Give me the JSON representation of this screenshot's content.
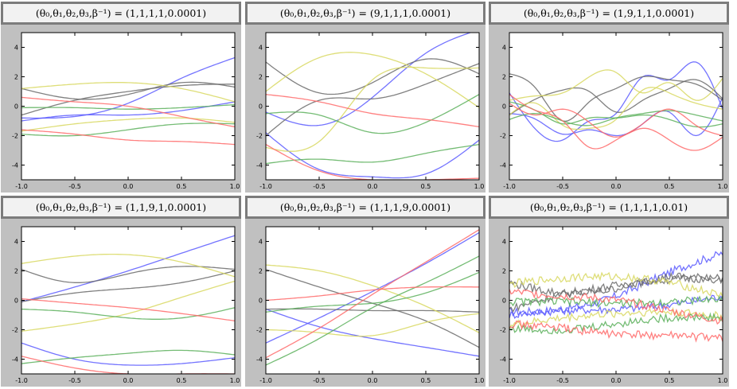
{
  "chart_data": [
    {
      "type": "line",
      "title": "(θ₀,θ₁,θ₂,θ₃,β⁻¹) = (1,1,1,1,0.0001)",
      "xlim": [
        -1.0,
        1.0
      ],
      "ylim": [
        -5.0,
        5.0
      ],
      "xticks": [
        "-1.0",
        "-0.5",
        "0.0",
        "0.5",
        "1.0"
      ],
      "yticks": [
        "-4",
        "-2",
        "0",
        "2",
        "4"
      ],
      "grid": false,
      "legend": "none",
      "x": [
        -1.0,
        -0.5,
        0.0,
        0.5,
        1.0
      ],
      "series": [
        {
          "color": "#5a5aff",
          "values": [
            -0.8,
            -0.7,
            0.2,
            1.9,
            3.3
          ]
        },
        {
          "color": "#5a5aff",
          "values": [
            -1.0,
            -0.6,
            -0.6,
            -0.3,
            0.3
          ]
        },
        {
          "color": "#6a6a6a",
          "values": [
            1.2,
            0.5,
            0.8,
            1.6,
            1.3
          ]
        },
        {
          "color": "#6a6a6a",
          "values": [
            -0.6,
            0.4,
            1.0,
            1.4,
            1.5
          ]
        },
        {
          "color": "#d8d860",
          "values": [
            1.2,
            1.5,
            1.6,
            1.2,
            0.3
          ]
        },
        {
          "color": "#d8d860",
          "values": [
            -1.7,
            -1.2,
            -0.9,
            -0.8,
            -1.1
          ]
        },
        {
          "color": "#5cb05c",
          "values": [
            -0.1,
            -0.1,
            -0.2,
            -0.1,
            0.1
          ]
        },
        {
          "color": "#5cb05c",
          "values": [
            -1.9,
            -2.0,
            -1.6,
            -1.2,
            -1.2
          ]
        },
        {
          "color": "#ff6a6a",
          "values": [
            0.6,
            0.3,
            0.0,
            -0.7,
            -1.4
          ]
        },
        {
          "color": "#ff6a6a",
          "values": [
            -1.6,
            -1.9,
            -2.3,
            -2.4,
            -2.6
          ]
        }
      ]
    },
    {
      "type": "line",
      "title": "(θ₀,θ₁,θ₂,θ₃,β⁻¹) = (9,1,1,1,0.0001)",
      "xlim": [
        -1.0,
        1.0
      ],
      "ylim": [
        -5.0,
        5.0
      ],
      "xticks": [
        "-1.0",
        "-0.5",
        "0.0",
        "0.5",
        "1.0"
      ],
      "yticks": [
        "-4",
        "-2",
        "0",
        "2",
        "4"
      ],
      "grid": false,
      "legend": "none",
      "x": [
        -1.0,
        -0.5,
        0.0,
        0.5,
        1.0
      ],
      "series": [
        {
          "color": "#5a5aff",
          "values": [
            -0.4,
            -1.3,
            0.6,
            3.6,
            5.2
          ]
        },
        {
          "color": "#5a5aff",
          "values": [
            -1.8,
            -4.3,
            -4.8,
            -4.6,
            -2.3
          ]
        },
        {
          "color": "#6a6a6a",
          "values": [
            3.0,
            0.9,
            1.6,
            3.2,
            2.2
          ]
        },
        {
          "color": "#6a6a6a",
          "values": [
            -2.0,
            0.4,
            0.5,
            1.5,
            2.9
          ]
        },
        {
          "color": "#d8d860",
          "values": [
            1.0,
            3.3,
            3.5,
            2.2,
            -0.1
          ]
        },
        {
          "color": "#d8d860",
          "values": [
            -2.8,
            -2.4,
            1.8,
            2.6,
            2.6
          ]
        },
        {
          "color": "#5cb05c",
          "values": [
            -0.5,
            -0.6,
            -1.8,
            -1.1,
            0.8
          ]
        },
        {
          "color": "#5cb05c",
          "values": [
            -3.9,
            -3.6,
            -3.8,
            -3.2,
            -2.6
          ]
        },
        {
          "color": "#ff6a6a",
          "values": [
            0.8,
            0.3,
            -0.5,
            -0.9,
            -1.4
          ]
        },
        {
          "color": "#ff6a6a",
          "values": [
            -2.6,
            -4.4,
            -5.0,
            -5.0,
            -4.9
          ]
        }
      ]
    },
    {
      "type": "line",
      "title": "(θ₀,θ₁,θ₂,θ₃,β⁻¹) = (1,9,1,1,0.0001)",
      "xlim": [
        -1.0,
        1.0
      ],
      "ylim": [
        -5.0,
        5.0
      ],
      "xticks": [
        "-1.0",
        "-0.5",
        "0.0",
        "0.5",
        "1.0"
      ],
      "yticks": [
        "-4",
        "-2",
        "0",
        "2",
        "4"
      ],
      "grid": false,
      "legend": "none",
      "x": [
        -1.0,
        -0.75,
        -0.5,
        -0.25,
        0.0,
        0.25,
        0.5,
        0.75,
        1.0
      ],
      "series": [
        {
          "color": "#5a5aff",
          "values": [
            0.9,
            -1.6,
            -2.3,
            -1.0,
            -0.5,
            2.0,
            1.8,
            3.0,
            -0.2
          ]
        },
        {
          "color": "#5a5aff",
          "values": [
            -0.5,
            -0.9,
            -1.9,
            -1.6,
            -2.0,
            -1.2,
            -0.4,
            -2.0,
            0.6
          ]
        },
        {
          "color": "#6a6a6a",
          "values": [
            2.2,
            1.2,
            -1.0,
            0.3,
            1.2,
            2.0,
            1.8,
            1.5,
            0.4
          ]
        },
        {
          "color": "#6a6a6a",
          "values": [
            -0.6,
            0.5,
            1.1,
            1.0,
            -0.4,
            0.4,
            1.2,
            1.8,
            0.5
          ]
        },
        {
          "color": "#d8d860",
          "values": [
            0.4,
            0.7,
            0.9,
            2.0,
            2.3,
            0.9,
            1.6,
            0.4,
            1.9
          ]
        },
        {
          "color": "#d8d860",
          "values": [
            -0.6,
            0.2,
            -1.3,
            -1.5,
            -0.9,
            1.1,
            0.9,
            0.2,
            -0.2
          ]
        },
        {
          "color": "#5cb05c",
          "values": [
            0.3,
            -0.3,
            -1.2,
            -0.8,
            -0.8,
            -0.6,
            -0.9,
            -1.4,
            -1.2
          ]
        },
        {
          "color": "#5cb05c",
          "values": [
            -0.9,
            -0.5,
            -1.0,
            -1.3,
            -0.8,
            -0.5,
            -0.3,
            -0.6,
            -1.0
          ]
        },
        {
          "color": "#ff6a6a",
          "values": [
            0.8,
            -0.3,
            -1.0,
            -2.8,
            -2.3,
            -1.2,
            -0.2,
            -1.3,
            -2.0
          ]
        },
        {
          "color": "#ff6a6a",
          "values": [
            0.2,
            -0.6,
            -0.2,
            -1.1,
            -2.1,
            -1.5,
            -2.3,
            -3.0,
            -2.1
          ]
        }
      ]
    },
    {
      "type": "line",
      "title": "(θ₀,θ₁,θ₂,θ₃,β⁻¹) = (1,1,9,1,0.0001)",
      "xlim": [
        -1.0,
        1.0
      ],
      "ylim": [
        -5.0,
        5.0
      ],
      "xticks": [
        "-1.0",
        "-0.5",
        "0.0",
        "0.5",
        "1.0"
      ],
      "yticks": [
        "-4",
        "-2",
        "0",
        "2",
        "4"
      ],
      "grid": false,
      "legend": "none",
      "x": [
        -1.0,
        -0.5,
        0.0,
        0.5,
        1.0
      ],
      "series": [
        {
          "color": "#5a5aff",
          "values": [
            -0.1,
            0.9,
            2.0,
            3.2,
            4.4
          ]
        },
        {
          "color": "#5a5aff",
          "values": [
            -2.9,
            -4.0,
            -4.4,
            -4.3,
            -3.9
          ]
        },
        {
          "color": "#6a6a6a",
          "values": [
            2.1,
            1.2,
            1.8,
            2.3,
            2.1
          ]
        },
        {
          "color": "#6a6a6a",
          "values": [
            -0.1,
            0.5,
            0.8,
            1.2,
            2.0
          ]
        },
        {
          "color": "#d8d860",
          "values": [
            2.5,
            3.0,
            3.1,
            2.6,
            1.6
          ]
        },
        {
          "color": "#d8d860",
          "values": [
            -2.1,
            -1.6,
            -0.9,
            0.2,
            1.3
          ]
        },
        {
          "color": "#5cb05c",
          "values": [
            -0.6,
            -0.8,
            -1.2,
            -1.2,
            -0.5
          ]
        },
        {
          "color": "#5cb05c",
          "values": [
            -4.3,
            -3.9,
            -3.6,
            -3.4,
            -3.7
          ]
        },
        {
          "color": "#ff6a6a",
          "values": [
            0.1,
            -0.2,
            -0.5,
            -0.9,
            -1.4
          ]
        },
        {
          "color": "#ff6a6a",
          "values": [
            -3.8,
            -4.6,
            -5.0,
            -5.0,
            -5.0
          ]
        }
      ]
    },
    {
      "type": "line",
      "title": "(θ₀,θ₁,θ₂,θ₃,β⁻¹) = (1,1,1,9,0.0001)",
      "xlim": [
        -1.0,
        1.0
      ],
      "ylim": [
        -5.0,
        5.0
      ],
      "xticks": [
        "-1.0",
        "-0.5",
        "0.0",
        "0.5",
        "1.0"
      ],
      "yticks": [
        "-4",
        "-2",
        "0",
        "2",
        "4"
      ],
      "grid": false,
      "legend": "none",
      "x": [
        -1.0,
        -0.5,
        0.0,
        0.5,
        1.0
      ],
      "series": [
        {
          "color": "#5a5aff",
          "values": [
            -2.9,
            -1.2,
            0.6,
            2.5,
            4.6
          ]
        },
        {
          "color": "#5a5aff",
          "values": [
            -0.6,
            -1.8,
            -2.6,
            -3.2,
            -3.8
          ]
        },
        {
          "color": "#6a6a6a",
          "values": [
            2.1,
            0.9,
            -0.2,
            -1.4,
            -3.2
          ]
        },
        {
          "color": "#6a6a6a",
          "values": [
            -0.6,
            -0.6,
            -0.7,
            -0.7,
            -0.8
          ]
        },
        {
          "color": "#d8d860",
          "values": [
            2.4,
            2.0,
            1.0,
            -0.4,
            -2.2
          ]
        },
        {
          "color": "#d8d860",
          "values": [
            -2.0,
            -2.2,
            -2.4,
            -1.5,
            -0.9
          ]
        },
        {
          "color": "#5cb05c",
          "values": [
            -4.4,
            -2.6,
            -0.5,
            1.2,
            3.0
          ]
        },
        {
          "color": "#5cb05c",
          "values": [
            -0.8,
            -0.4,
            -0.2,
            0.5,
            1.9
          ]
        },
        {
          "color": "#ff6a6a",
          "values": [
            0.0,
            0.3,
            0.7,
            0.9,
            0.9
          ]
        },
        {
          "color": "#ff6a6a",
          "values": [
            -3.9,
            -1.9,
            0.4,
            2.6,
            4.8
          ]
        }
      ]
    },
    {
      "type": "line",
      "title": "(θ₀,θ₁,θ₂,θ₃,β⁻¹) = (1,1,1,1,0.01)",
      "xlim": [
        -1.0,
        1.0
      ],
      "ylim": [
        -5.0,
        5.0
      ],
      "xticks": [
        "-1.0",
        "-0.5",
        "0.0",
        "0.5",
        "1.0"
      ],
      "yticks": [
        "-4",
        "-2",
        "0",
        "2",
        "4"
      ],
      "grid": false,
      "legend": "none",
      "x": [
        -1.0,
        -0.5,
        0.0,
        0.5,
        1.0
      ],
      "series": [
        {
          "color": "#5a5aff",
          "values": [
            -0.8,
            -0.6,
            0.3,
            1.9,
            3.2
          ]
        },
        {
          "color": "#5a5aff",
          "values": [
            -1.0,
            -0.7,
            -0.6,
            -0.3,
            0.3
          ]
        },
        {
          "color": "#6a6a6a",
          "values": [
            1.2,
            0.5,
            0.8,
            1.6,
            1.3
          ]
        },
        {
          "color": "#6a6a6a",
          "values": [
            -0.6,
            0.4,
            1.0,
            1.4,
            1.5
          ]
        },
        {
          "color": "#d8d860",
          "values": [
            1.1,
            1.5,
            1.6,
            1.2,
            0.3
          ]
        },
        {
          "color": "#d8d860",
          "values": [
            -1.7,
            -1.2,
            -0.9,
            -0.8,
            -1.1
          ]
        },
        {
          "color": "#5cb05c",
          "values": [
            -0.1,
            -0.1,
            -0.2,
            -0.1,
            0.1
          ]
        },
        {
          "color": "#5cb05c",
          "values": [
            -1.9,
            -2.0,
            -1.6,
            -1.2,
            -1.2
          ]
        },
        {
          "color": "#ff6a6a",
          "values": [
            0.6,
            0.3,
            0.0,
            -0.7,
            -1.4
          ]
        },
        {
          "color": "#ff6a6a",
          "values": [
            -1.6,
            -1.9,
            -2.3,
            -2.4,
            -2.6
          ]
        }
      ]
    }
  ]
}
